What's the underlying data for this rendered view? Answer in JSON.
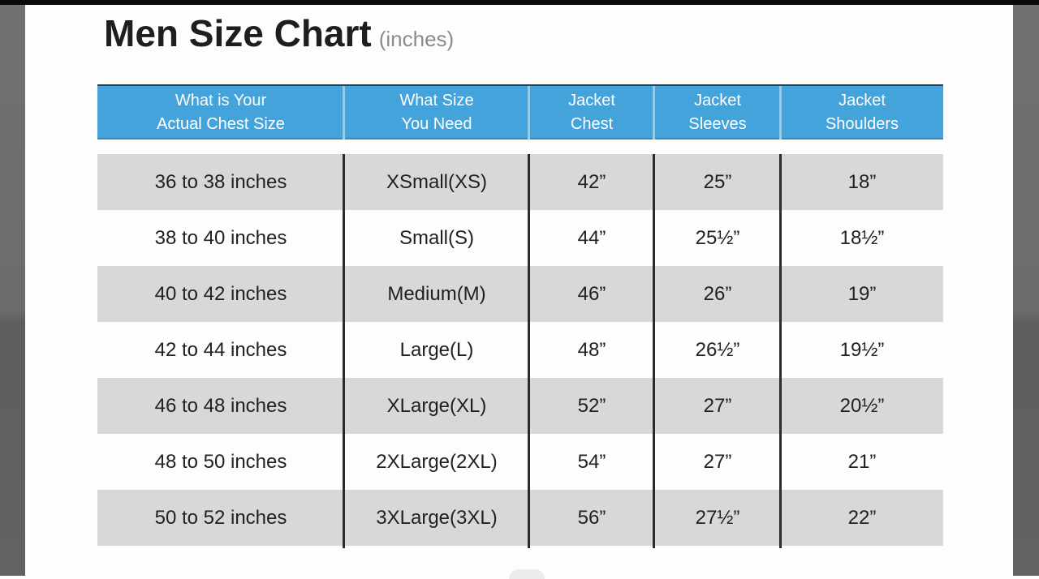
{
  "page": {
    "title": "Men Size Chart",
    "title_suffix": "(inches)"
  },
  "table": {
    "columns": [
      {
        "line1": "What is Your",
        "line2": "Actual Chest Size"
      },
      {
        "line1": "What Size",
        "line2": "You Need"
      },
      {
        "line1": "Jacket",
        "line2": "Chest"
      },
      {
        "line1": "Jacket",
        "line2": "Sleeves"
      },
      {
        "line1": "Jacket",
        "line2": "Shoulders"
      }
    ],
    "rows": [
      [
        "36 to 38 inches",
        "XSmall(XS)",
        "42”",
        "25”",
        "18”"
      ],
      [
        "38 to 40 inches",
        "Small(S)",
        "44”",
        "25½”",
        "18½”"
      ],
      [
        "40 to 42 inches",
        "Medium(M)",
        "46”",
        "26”",
        "19”"
      ],
      [
        "42 to 44 inches",
        "Large(L)",
        "48”",
        "26½”",
        "19½”"
      ],
      [
        "46 to 48 inches",
        "XLarge(XL)",
        "52”",
        "27”",
        "20½”"
      ],
      [
        "48 to 50 inches",
        "2XLarge(2XL)",
        "54”",
        "27”",
        "21”"
      ],
      [
        "50 to 52 inches",
        "3XLarge(3XL)",
        "56”",
        "27½”",
        "22”"
      ]
    ]
  },
  "colors": {
    "header_bg": "#44a3db",
    "header_divider": "#93cdec",
    "header_text": "#ffffff",
    "row_alt_bg": "#d8d8d8",
    "body_divider": "#2b2b2b",
    "title_text": "#1e1e1e",
    "title_suffix_text": "#8b8b8b",
    "edge_bar": "#6c6c6c",
    "top_bar": "#0b0b0b",
    "background": "#fdfdfd"
  },
  "chart_data": {
    "type": "table",
    "title": "Men Size Chart (inches)",
    "columns": [
      "What is Your Actual Chest Size",
      "What Size You Need",
      "Jacket Chest",
      "Jacket Sleeves",
      "Jacket Shoulders"
    ],
    "rows": [
      [
        "36 to 38 inches",
        "XSmall(XS)",
        "42\"",
        "25\"",
        "18\""
      ],
      [
        "38 to 40 inches",
        "Small(S)",
        "44\"",
        "25.5\"",
        "18.5\""
      ],
      [
        "40 to 42 inches",
        "Medium(M)",
        "46\"",
        "26\"",
        "19\""
      ],
      [
        "42 to 44 inches",
        "Large(L)",
        "48\"",
        "26.5\"",
        "19.5\""
      ],
      [
        "46 to 48 inches",
        "XLarge(XL)",
        "52\"",
        "27\"",
        "20.5\""
      ],
      [
        "48 to 50 inches",
        "2XLarge(2XL)",
        "54\"",
        "27\"",
        "21\""
      ],
      [
        "50 to 52 inches",
        "3XLarge(3XL)",
        "56\"",
        "27.5\"",
        "22\""
      ]
    ],
    "layout": {
      "header_position": "top",
      "alternating_row_shading": true,
      "first_data_row_shaded": true
    }
  }
}
